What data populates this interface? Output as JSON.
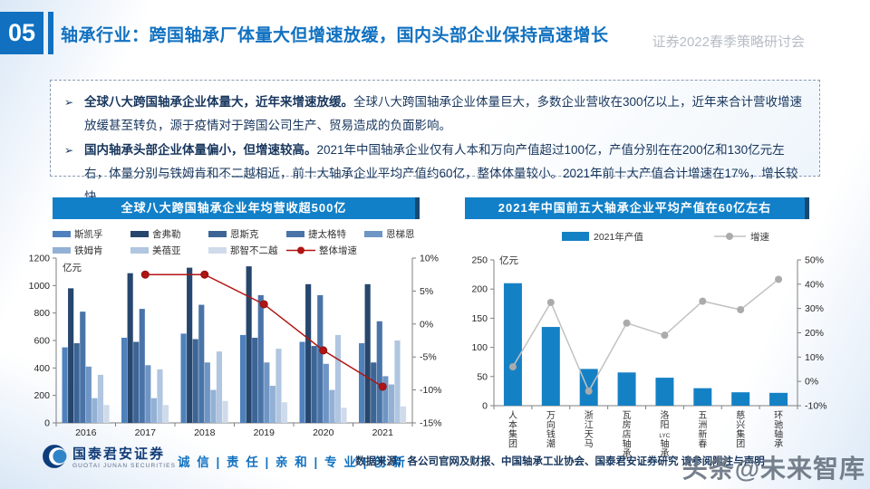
{
  "header": {
    "slide_number": "05",
    "title": "轴承行业：跨国轴承厂体量大但增速放缓，国内头部企业保持高速增长",
    "watermark": "证券2022春季策略研讨会"
  },
  "bullets": {
    "marker": "➢",
    "items": [
      {
        "lead": "全球八大跨国轴承企业体量大，近年来增速放缓。",
        "body": "全球八大跨国轴承企业体量巨大，多数企业营收在300亿以上，近年来合计营收增速放缓甚至转负，源于疫情对于跨国公司生产、贸易造成的负面影响。"
      },
      {
        "lead": "国内轴承头部企业体量偏小，但增速较高。",
        "body": "2021年中国轴承企业仅有人本和万向产值超过100亿，产值分别在在200亿和130亿元左右，体量分别与铁姆肯和不二越相近，前十大轴承企业平均产值约60亿，整体体量较小。2021年前十大产值合计增速在17%，增长较快。"
      }
    ]
  },
  "chart_data": [
    {
      "type": "bar",
      "title": "全球八大跨国轴承企业年均营收超500亿",
      "ylabel": "亿元",
      "categories": [
        "2016",
        "2017",
        "2018",
        "2019",
        "2020",
        "2021"
      ],
      "series": [
        {
          "name": "斯凯孚",
          "color": "#4f81bd",
          "values": [
            550,
            620,
            650,
            640,
            590,
            580
          ]
        },
        {
          "name": "舍弗勒",
          "color": "#26466d",
          "values": [
            980,
            1090,
            1130,
            1140,
            1010,
            1010
          ]
        },
        {
          "name": "恩斯克",
          "color": "#3c6595",
          "values": [
            580,
            590,
            610,
            620,
            560,
            440
          ]
        },
        {
          "name": "捷太格特",
          "color": "#4a74a8",
          "values": [
            810,
            830,
            860,
            930,
            930,
            740
          ]
        },
        {
          "name": "恩梯恩",
          "color": "#6f95c4",
          "values": [
            410,
            420,
            440,
            440,
            430,
            340
          ]
        },
        {
          "name": "铁姆肯",
          "color": "#93b1d5",
          "values": [
            180,
            180,
            240,
            270,
            240,
            280
          ]
        },
        {
          "name": "美蓓亚",
          "color": "#b1c6e0",
          "values": [
            350,
            390,
            520,
            540,
            640,
            600
          ]
        },
        {
          "name": "那智不二越",
          "color": "#cfdbeb",
          "values": [
            130,
            130,
            160,
            150,
            110,
            120
          ]
        }
      ],
      "line": {
        "name": "整体增速",
        "color": "#b01513",
        "values": [
          null,
          7.5,
          7.5,
          3,
          -4,
          -9.5
        ]
      },
      "ylim": [
        0,
        1200
      ],
      "y_ticks": [
        0,
        200,
        400,
        600,
        800,
        1000,
        1200
      ],
      "y2lim": [
        -15,
        10
      ],
      "y2_ticks": [
        -15,
        -10,
        -5,
        0,
        5,
        10
      ],
      "grid": false,
      "legend_position": "top"
    },
    {
      "type": "bar",
      "title": "2021年中国前五大轴承企业平均产值在60亿左右",
      "ylabel": "亿元",
      "categories": [
        "人本集团",
        "万向钱潮",
        "浙江天马",
        "瓦房店轴承",
        "洛阳LYC轴承",
        "五洲新春",
        "慈兴集团",
        "环驰轴承"
      ],
      "bar_series": {
        "name": "2021年产值",
        "color": "#1581c5",
        "values": [
          210,
          135,
          63,
          57,
          48,
          30,
          23,
          22
        ]
      },
      "line": {
        "name": "增速",
        "color": "#c2c2c2",
        "marker_color": "#ababab",
        "values": [
          6,
          32.5,
          -4,
          24,
          19,
          33,
          29.5,
          42
        ]
      },
      "ylim": [
        0,
        250
      ],
      "y_ticks": [
        0,
        50,
        100,
        150,
        200,
        250
      ],
      "y2lim": [
        -10,
        50
      ],
      "y2_ticks": [
        -10,
        0,
        10,
        20,
        30,
        40,
        50
      ],
      "grid": false,
      "legend_position": "top"
    }
  ],
  "footer": {
    "logo_cn": "国泰君安证券",
    "logo_en": "GUOTAI JUNAN SECURITIES",
    "slogan": "诚 信 | 责 任 | 亲 和 | 专 业 | 创 新",
    "source": "数据来源：各公司官网及财报、中国轴承工业协会、国泰君安证券研究 请参阅附注与声明"
  },
  "watermark": "头条@未来智库"
}
